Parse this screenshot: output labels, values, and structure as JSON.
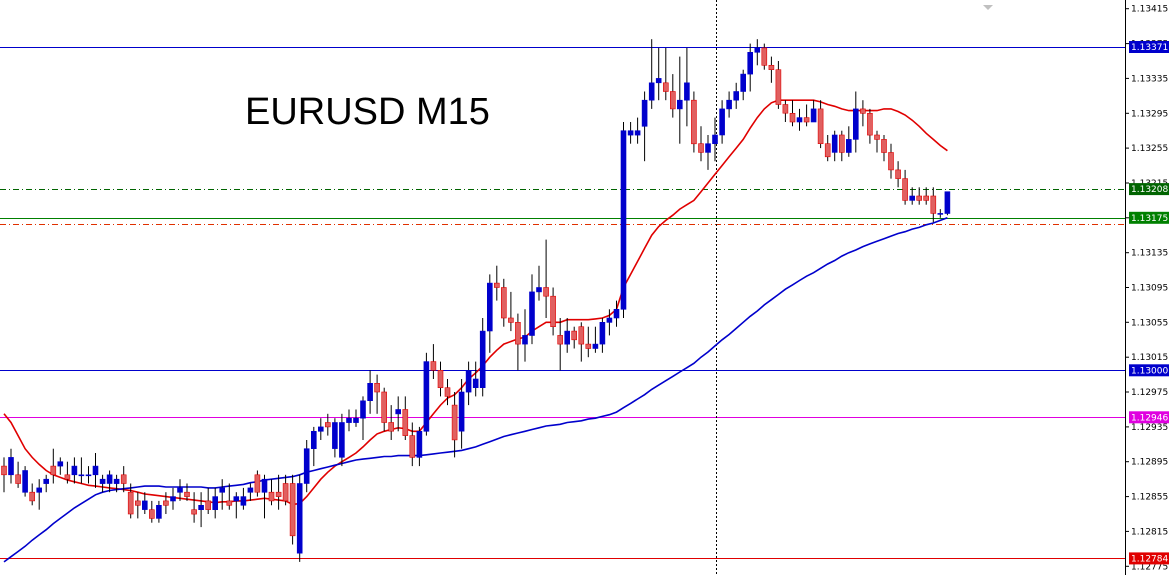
{
  "chart_data": {
    "type": "candlestick",
    "title": "EURUSD M15",
    "ylim": [
      1.12765,
      1.13425
    ],
    "y_ticks": [
      "1.13415",
      "1.13375",
      "1.13335",
      "1.13295",
      "1.13255",
      "1.13215",
      "1.13175",
      "1.13135",
      "1.13095",
      "1.13055",
      "1.13015",
      "1.12975",
      "1.12935",
      "1.12895",
      "1.12855",
      "1.12815",
      "1.12775"
    ],
    "candles": [
      [
        1.1289,
        1.129,
        1.1286,
        1.1288
      ],
      [
        1.1288,
        1.1291,
        1.1287,
        1.129
      ],
      [
        1.1288,
        1.12895,
        1.12865,
        1.1287
      ],
      [
        1.1286,
        1.1289,
        1.12855,
        1.12885
      ],
      [
        1.1286,
        1.1287,
        1.12845,
        1.1285
      ],
      [
        1.1286,
        1.12875,
        1.1284,
        1.12865
      ],
      [
        1.1287,
        1.1288,
        1.1286,
        1.12875
      ],
      [
        1.1289,
        1.1291,
        1.1287,
        1.1288
      ],
      [
        1.1289,
        1.129,
        1.1288,
        1.12895
      ],
      [
        1.1288,
        1.12895,
        1.1287,
        1.12875
      ],
      [
        1.1288,
        1.129,
        1.1287,
        1.1289
      ],
      [
        1.1288,
        1.129,
        1.1287,
        1.1288
      ],
      [
        1.1288,
        1.1289,
        1.1287,
        1.1288
      ],
      [
        1.1288,
        1.12905,
        1.12865,
        1.1289
      ],
      [
        1.1287,
        1.1288,
        1.1286,
        1.12875
      ],
      [
        1.1287,
        1.12885,
        1.1286,
        1.1288
      ],
      [
        1.1287,
        1.1288,
        1.1286,
        1.12875
      ],
      [
        1.1288,
        1.1289,
        1.1286,
        1.1287
      ],
      [
        1.1286,
        1.1287,
        1.1283,
        1.12835
      ],
      [
        1.1285,
        1.1286,
        1.1283,
        1.12845
      ],
      [
        1.1284,
        1.1286,
        1.12835,
        1.1285
      ],
      [
        1.1284,
        1.1285,
        1.12825,
        1.1283
      ],
      [
        1.1283,
        1.1285,
        1.12825,
        1.12845
      ],
      [
        1.1285,
        1.1286,
        1.12835,
        1.12845
      ],
      [
        1.1285,
        1.12865,
        1.1284,
        1.12855
      ],
      [
        1.1286,
        1.12875,
        1.1285,
        1.12865
      ],
      [
        1.1286,
        1.1287,
        1.1285,
        1.12855
      ],
      [
        1.1284,
        1.1286,
        1.12825,
        1.12835
      ],
      [
        1.1284,
        1.1286,
        1.1282,
        1.12845
      ],
      [
        1.1285,
        1.12865,
        1.12835,
        1.1284
      ],
      [
        1.1284,
        1.12865,
        1.1283,
        1.12855
      ],
      [
        1.1286,
        1.12875,
        1.1284,
        1.12865
      ],
      [
        1.1285,
        1.1287,
        1.1284,
        1.12845
      ],
      [
        1.1285,
        1.1286,
        1.1283,
        1.12855
      ],
      [
        1.12845,
        1.12865,
        1.1284,
        1.12855
      ],
      [
        1.1286,
        1.1287,
        1.1285,
        1.12865
      ],
      [
        1.1288,
        1.12885,
        1.12855,
        1.1286
      ],
      [
        1.1286,
        1.1288,
        1.1283,
        1.12875
      ],
      [
        1.1286,
        1.12875,
        1.12845,
        1.1285
      ],
      [
        1.1286,
        1.1288,
        1.1284,
        1.12855
      ],
      [
        1.1287,
        1.1288,
        1.12845,
        1.1285
      ],
      [
        1.1287,
        1.1288,
        1.128,
        1.1281
      ],
      [
        1.1279,
        1.1288,
        1.1278,
        1.1287
      ],
      [
        1.1287,
        1.1292,
        1.1286,
        1.1291
      ],
      [
        1.1291,
        1.12935,
        1.1289,
        1.1293
      ],
      [
        1.1293,
        1.12945,
        1.1292,
        1.12935
      ],
      [
        1.1294,
        1.1295,
        1.12925,
        1.12935
      ],
      [
        1.1291,
        1.12945,
        1.129,
        1.1294
      ],
      [
        1.129,
        1.1295,
        1.1289,
        1.1294
      ],
      [
        1.1294,
        1.12955,
        1.1293,
        1.12945
      ],
      [
        1.1294,
        1.12955,
        1.12935,
        1.12945
      ],
      [
        1.12945,
        1.1297,
        1.1292,
        1.12965
      ],
      [
        1.12965,
        1.13,
        1.1295,
        1.12985
      ],
      [
        1.12985,
        1.12995,
        1.1295,
        1.12975
      ],
      [
        1.12975,
        1.1298,
        1.1293,
        1.1294
      ],
      [
        1.1294,
        1.1296,
        1.1292,
        1.1293
      ],
      [
        1.1295,
        1.1297,
        1.1293,
        1.12955
      ],
      [
        1.12955,
        1.1297,
        1.1292,
        1.12925
      ],
      [
        1.12925,
        1.1294,
        1.1289,
        1.129
      ],
      [
        1.129,
        1.12935,
        1.1289,
        1.1293
      ],
      [
        1.1293,
        1.1302,
        1.12925,
        1.1301
      ],
      [
        1.1301,
        1.1303,
        1.1299,
        1.13
      ],
      [
        1.13,
        1.1301,
        1.1297,
        1.1298
      ],
      [
        1.1298,
        1.1299,
        1.1296,
        1.1297
      ],
      [
        1.1296,
        1.12975,
        1.129,
        1.1292
      ],
      [
        1.1293,
        1.1299,
        1.1291,
        1.12975
      ],
      [
        1.12975,
        1.1301,
        1.1296,
        1.13
      ],
      [
        1.1298,
        1.1301,
        1.1297,
        1.1299
      ],
      [
        1.1298,
        1.1306,
        1.1297,
        1.13045
      ],
      [
        1.13045,
        1.1311,
        1.1302,
        1.131
      ],
      [
        1.131,
        1.1312,
        1.1308,
        1.13095
      ],
      [
        1.13095,
        1.13105,
        1.1305,
        1.1306
      ],
      [
        1.1306,
        1.1309,
        1.13045,
        1.13055
      ],
      [
        1.13055,
        1.13065,
        1.13,
        1.1303
      ],
      [
        1.1303,
        1.1307,
        1.1301,
        1.1304
      ],
      [
        1.1304,
        1.1311,
        1.1303,
        1.1309
      ],
      [
        1.1309,
        1.1312,
        1.1308,
        1.13095
      ],
      [
        1.13095,
        1.1315,
        1.1306,
        1.13085
      ],
      [
        1.13085,
        1.13095,
        1.1304,
        1.1305
      ],
      [
        1.1304,
        1.1306,
        1.13,
        1.1303
      ],
      [
        1.1303,
        1.1306,
        1.1302,
        1.13045
      ],
      [
        1.13045,
        1.1305,
        1.13025,
        1.13035
      ],
      [
        1.1305,
        1.13055,
        1.1301,
        1.1303
      ],
      [
        1.1303,
        1.1305,
        1.13015,
        1.13025
      ],
      [
        1.13025,
        1.1305,
        1.1302,
        1.1303
      ],
      [
        1.1303,
        1.1306,
        1.1302,
        1.13055
      ],
      [
        1.13055,
        1.1307,
        1.1304,
        1.1306
      ],
      [
        1.1306,
        1.1308,
        1.1305,
        1.1307
      ],
      [
        1.1307,
        1.13285,
        1.1306,
        1.13275
      ],
      [
        1.1327,
        1.13285,
        1.1326,
        1.13275
      ],
      [
        1.1327,
        1.1329,
        1.1326,
        1.13275
      ],
      [
        1.1328,
        1.1332,
        1.1324,
        1.1331
      ],
      [
        1.1331,
        1.1338,
        1.133,
        1.1333
      ],
      [
        1.1333,
        1.1337,
        1.1331,
        1.13335
      ],
      [
        1.1333,
        1.1337,
        1.1331,
        1.1332
      ],
      [
        1.1332,
        1.1334,
        1.1329,
        1.133
      ],
      [
        1.133,
        1.1336,
        1.1326,
        1.1331
      ],
      [
        1.1331,
        1.1337,
        1.1328,
        1.1333
      ],
      [
        1.1331,
        1.1332,
        1.1325,
        1.1326
      ],
      [
        1.1326,
        1.1328,
        1.1324,
        1.1325
      ],
      [
        1.1325,
        1.1327,
        1.1323,
        1.1326
      ],
      [
        1.1326,
        1.1329,
        1.1324,
        1.1327
      ],
      [
        1.1327,
        1.1331,
        1.1326,
        1.133
      ],
      [
        1.133,
        1.1332,
        1.1329,
        1.1331
      ],
      [
        1.1331,
        1.1333,
        1.133,
        1.1332
      ],
      [
        1.1332,
        1.13345,
        1.1331,
        1.1334
      ],
      [
        1.1334,
        1.13375,
        1.1332,
        1.13365
      ],
      [
        1.13365,
        1.1338,
        1.1335,
        1.1337
      ],
      [
        1.1337,
        1.13375,
        1.13345,
        1.1335
      ],
      [
        1.1335,
        1.1336,
        1.1333,
        1.13345
      ],
      [
        1.13345,
        1.13355,
        1.133,
        1.13305
      ],
      [
        1.13305,
        1.1331,
        1.13285,
        1.13295
      ],
      [
        1.13295,
        1.1331,
        1.1328,
        1.13285
      ],
      [
        1.13285,
        1.133,
        1.13275,
        1.1329
      ],
      [
        1.1329,
        1.13305,
        1.1328,
        1.13285
      ],
      [
        1.13285,
        1.1331,
        1.13285,
        1.133
      ],
      [
        1.133,
        1.1331,
        1.13255,
        1.1326
      ],
      [
        1.1326,
        1.1327,
        1.1324,
        1.13245
      ],
      [
        1.1325,
        1.13275,
        1.1324,
        1.1327
      ],
      [
        1.1327,
        1.13275,
        1.1324,
        1.1325
      ],
      [
        1.1325,
        1.1328,
        1.13245,
        1.13265
      ],
      [
        1.13265,
        1.1332,
        1.1325,
        1.133
      ],
      [
        1.133,
        1.1331,
        1.1328,
        1.13295
      ],
      [
        1.13295,
        1.133,
        1.1326,
        1.1327
      ],
      [
        1.1327,
        1.13275,
        1.1325,
        1.13265
      ],
      [
        1.13265,
        1.1327,
        1.1324,
        1.1325
      ],
      [
        1.1325,
        1.1326,
        1.1322,
        1.1323
      ],
      [
        1.1323,
        1.1324,
        1.1321,
        1.1322
      ],
      [
        1.1322,
        1.1323,
        1.1319,
        1.13195
      ],
      [
        1.13195,
        1.1321,
        1.1319,
        1.132
      ],
      [
        1.132,
        1.1321,
        1.1319,
        1.13195
      ],
      [
        1.132,
        1.1321,
        1.1319,
        1.13195
      ],
      [
        1.132,
        1.1321,
        1.1317,
        1.1318
      ],
      [
        1.1318,
        1.13185,
        1.13175,
        1.1318
      ],
      [
        1.1318,
        1.13205,
        1.13178,
        1.13205
      ]
    ],
    "series": [
      {
        "color": "#e00000",
        "values": [
          1.1295,
          1.1294,
          1.12925,
          1.1291,
          1.129,
          1.12892,
          1.12885,
          1.1288,
          1.12877,
          1.12874,
          1.12872,
          1.1287,
          1.12868,
          1.12867,
          1.12866,
          1.12865,
          1.12864,
          1.12863,
          1.12862,
          1.1286,
          1.12858,
          1.12857,
          1.12856,
          1.12855,
          1.12854,
          1.12853,
          1.12852,
          1.12851,
          1.1285,
          1.12849,
          1.12848,
          1.12849,
          1.12849,
          1.1285,
          1.1285,
          1.12851,
          1.12852,
          1.12853,
          1.12852,
          1.12851,
          1.1285,
          1.12846,
          1.12847,
          1.12855,
          1.12865,
          1.12875,
          1.12883,
          1.1289,
          1.12895,
          1.129,
          1.12905,
          1.12912,
          1.1292,
          1.12927,
          1.1293,
          1.12932,
          1.12934,
          1.12933,
          1.1293,
          1.1293,
          1.1294,
          1.1295,
          1.1296,
          1.12968,
          1.12972,
          1.1298,
          1.1299,
          1.12997,
          1.13005,
          1.13015,
          1.13023,
          1.1303,
          1.13033,
          1.13036,
          1.13038,
          1.13045,
          1.1305,
          1.13055,
          1.13055,
          1.13055,
          1.13058,
          1.13058,
          1.13058,
          1.13058,
          1.13059,
          1.1306,
          1.13063,
          1.1307,
          1.13095,
          1.1311,
          1.13125,
          1.1314,
          1.13155,
          1.13165,
          1.13172,
          1.13178,
          1.13185,
          1.1319,
          1.13195,
          1.13205,
          1.13215,
          1.13225,
          1.13235,
          1.13245,
          1.13255,
          1.13265,
          1.13278,
          1.1329,
          1.133,
          1.13307,
          1.1331,
          1.1331,
          1.1331,
          1.1331,
          1.1331,
          1.1331,
          1.13308,
          1.13305,
          1.13303,
          1.133,
          1.13298,
          1.13298,
          1.13298,
          1.13298,
          1.13298,
          1.133,
          1.133,
          1.13297,
          1.13293,
          1.13287,
          1.1328,
          1.13272,
          1.13265,
          1.13258,
          1.13252
        ]
      },
      {
        "color": "#0000cc",
        "values": [
          1.1278,
          1.12786,
          1.12792,
          1.12798,
          1.12805,
          1.12811,
          1.12817,
          1.12824,
          1.1283,
          1.12836,
          1.12842,
          1.12847,
          1.12852,
          1.12857,
          1.1286,
          1.12862,
          1.12863,
          1.12864,
          1.12865,
          1.12866,
          1.12867,
          1.12867,
          1.12867,
          1.12866,
          1.12866,
          1.12866,
          1.12866,
          1.12866,
          1.12866,
          1.12865,
          1.12865,
          1.12866,
          1.12867,
          1.12868,
          1.12869,
          1.12871,
          1.12872,
          1.12874,
          1.12875,
          1.12876,
          1.12877,
          1.12878,
          1.1288,
          1.12883,
          1.12885,
          1.12887,
          1.12889,
          1.12891,
          1.12893,
          1.12895,
          1.12897,
          1.12898,
          1.12899,
          1.129,
          1.12901,
          1.12901,
          1.12902,
          1.12902,
          1.12902,
          1.12902,
          1.12903,
          1.12904,
          1.12905,
          1.12906,
          1.12907,
          1.12908,
          1.1291,
          1.12912,
          1.12915,
          1.12918,
          1.12921,
          1.12924,
          1.12926,
          1.12928,
          1.1293,
          1.12932,
          1.12934,
          1.12936,
          1.12937,
          1.12938,
          1.1294,
          1.12941,
          1.12942,
          1.12944,
          1.12945,
          1.12947,
          1.12949,
          1.12952,
          1.12957,
          1.12962,
          1.12967,
          1.12972,
          1.12978,
          1.12983,
          1.12988,
          1.12993,
          1.12998,
          1.13003,
          1.13008,
          1.13015,
          1.13021,
          1.13028,
          1.13035,
          1.13041,
          1.13048,
          1.13055,
          1.13062,
          1.13068,
          1.13075,
          1.13081,
          1.13087,
          1.13093,
          1.13098,
          1.13103,
          1.13108,
          1.13112,
          1.13117,
          1.13122,
          1.13126,
          1.13131,
          1.13135,
          1.13138,
          1.13142,
          1.13145,
          1.13148,
          1.13151,
          1.13154,
          1.13157,
          1.13159,
          1.13162,
          1.13164,
          1.13167,
          1.13169,
          1.13172,
          1.13175
        ]
      }
    ],
    "hlines": [
      {
        "value": 1.13371,
        "color": "#0000cc",
        "style": "solid",
        "label": "1.13371"
      },
      {
        "value": 1.13208,
        "color": "#006400",
        "style": "dashdot",
        "label": "1.13208"
      },
      {
        "value": 1.13175,
        "color": "#008000",
        "style": "solid",
        "label": "1.13175"
      },
      {
        "value": 1.13168,
        "color": "#e03000",
        "style": "dashdot",
        "label": ""
      },
      {
        "value": 1.13,
        "color": "#0000cc",
        "style": "solid",
        "label": "1.13000"
      },
      {
        "value": 1.12946,
        "color": "#e000e0",
        "style": "solid",
        "label": "1.12946"
      },
      {
        "value": 1.12784,
        "color": "#e00000",
        "style": "solid",
        "label": "1.12784"
      }
    ],
    "colors": {
      "bull": "#0000cc",
      "bear": "#e00000",
      "bear_body": "#e06060",
      "axis": "#000000",
      "grid_vertical": "#000000"
    }
  }
}
